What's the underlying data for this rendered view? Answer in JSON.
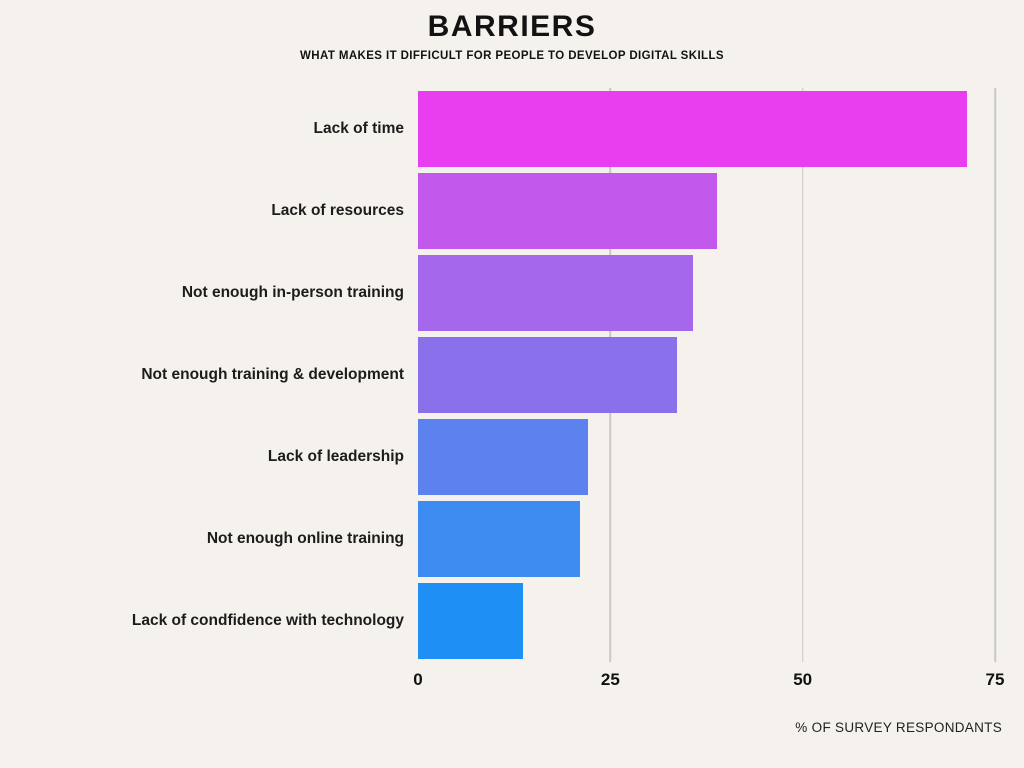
{
  "header": {
    "title": "BARRIERS",
    "subtitle": "WHAT MAKES IT DIFFICULT FOR PEOPLE TO DEVELOP DIGITAL SKILLS"
  },
  "colors": {
    "background": "#f5f2ed",
    "gridline": "#c9c7c2",
    "text": "#121212"
  },
  "chart_data": {
    "type": "bar",
    "orientation": "horizontal",
    "title": "BARRIERS",
    "subtitle": "WHAT MAKES IT DIFFICULT FOR PEOPLE TO DEVELOP DIGITAL SKILLS",
    "categories": [
      "Lack of time",
      "Lack of resources",
      "Not enough in-person training",
      "Not enough training & development",
      "Lack of leadership",
      "Not enough online training",
      "Lack of condfidence with technology"
    ],
    "values": [
      68,
      37,
      34,
      32,
      21,
      20,
      13
    ],
    "bar_colors": [
      "#e83ef0",
      "#c259ec",
      "#a567ec",
      "#8b70ec",
      "#5c82f0",
      "#3c8cf2",
      "#1e90f5"
    ],
    "xlim": [
      0,
      75
    ],
    "ticks": [
      0,
      25,
      50,
      75
    ],
    "gridlines": [
      25,
      50,
      75
    ],
    "xlabel": "% OF SURVEY RESPONDANTS",
    "grid": true,
    "legend": false
  }
}
